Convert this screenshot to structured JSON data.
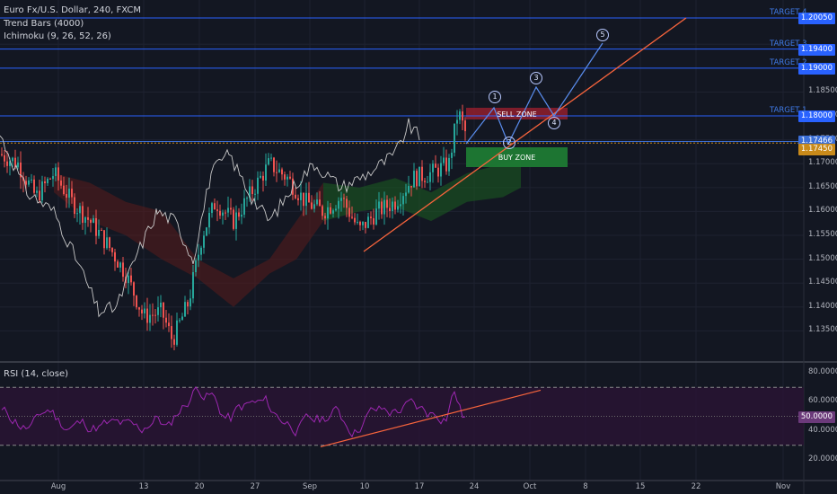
{
  "legend": {
    "symbol": "Euro Fx/U.S. Dollar, 240, FXCM",
    "trend_bars": "Trend Bars (4000)",
    "ichimoku": "Ichimoku (9, 26, 52, 26)",
    "rsi": "RSI (14, close)"
  },
  "price_axis": [
    "1.20000",
    "1.19000",
    "1.18500",
    "1.18000",
    "1.17500",
    "1.17000",
    "1.16500",
    "1.16000",
    "1.15500",
    "1.15000",
    "1.14500",
    "1.14000",
    "1.13500"
  ],
  "price_tags": [
    {
      "value": "1.20050",
      "color": "#2962ff"
    },
    {
      "value": "1.19400",
      "color": "#2962ff"
    },
    {
      "value": "1.19000",
      "color": "#2962ff"
    },
    {
      "value": "1.18000",
      "color": "#2962ff"
    },
    {
      "value": "1.17466",
      "color": "#3b6fd8"
    },
    {
      "value": "1.17450",
      "color": "#c98a1a"
    }
  ],
  "targets": [
    "TARGET 4",
    "TARGET 3",
    "TARGET 2",
    "TARGET 1"
  ],
  "zones": {
    "sell": "SELL ZONE",
    "buy": "BUY ZONE"
  },
  "waves": [
    "1",
    "2",
    "3",
    "4",
    "5"
  ],
  "rsi_axis": [
    "80.0000",
    "60.0000",
    "50.0000",
    "40.0000",
    "20.0000"
  ],
  "dates": [
    "Aug",
    "13",
    "20",
    "27",
    "Sep",
    "10",
    "17",
    "24",
    "Oct",
    "8",
    "15",
    "22",
    "Nov"
  ],
  "colors": {
    "background": "#131722",
    "bull": "#26a69a",
    "bear": "#ef5350",
    "target_line": "#2962ff",
    "trend_line": "#f7643c",
    "rsi_line": "#9c27b0"
  }
}
